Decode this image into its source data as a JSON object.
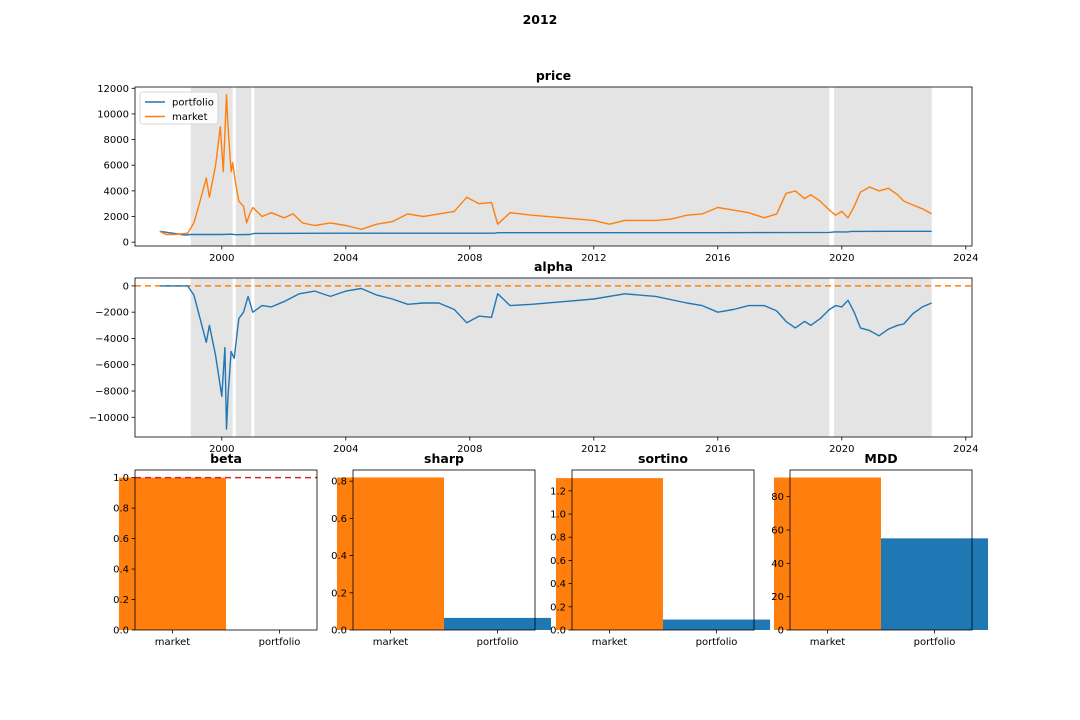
{
  "figure": {
    "suptitle": "2012"
  },
  "colors": {
    "portfolio": "#1f77b4",
    "market": "#ff7f0e",
    "shade": "#e4e4e4",
    "beta_ref": "#d62728",
    "alpha_ref": "#ff7f0e"
  },
  "chart_data": [
    {
      "id": "price",
      "type": "line",
      "title": "price",
      "xlabel": "",
      "ylabel": "",
      "xlim": [
        1997.2,
        2024.2
      ],
      "ylim": [
        -300,
        12100
      ],
      "xticks": [
        2000,
        2004,
        2008,
        2012,
        2016,
        2020,
        2024
      ],
      "xtick_labels": [
        "2000",
        "2004",
        "2008",
        "2012",
        "2016",
        "2020",
        "2024"
      ],
      "yticks": [
        0,
        2000,
        4000,
        6000,
        8000,
        10000,
        12000
      ],
      "ytick_labels": [
        "0",
        "2000",
        "4000",
        "6000",
        "8000",
        "10000",
        "12000"
      ],
      "legend": {
        "position": "upper-left",
        "entries": [
          "portfolio",
          "market"
        ]
      },
      "shaded_periods": [
        [
          1999.0,
          2000.35
        ],
        [
          2000.45,
          2000.95
        ],
        [
          2001.05,
          2019.6
        ],
        [
          2019.75,
          2022.9
        ]
      ],
      "series": [
        {
          "name": "portfolio",
          "x": [
            1998.0,
            1998.8,
            1999.0,
            2000.0,
            2000.3,
            2000.45,
            2000.9,
            2001.05,
            2004.0,
            2008.8,
            2008.9,
            2012.0,
            2016.0,
            2019.6,
            2019.75,
            2020.2,
            2020.3,
            2022.9
          ],
          "y": [
            850,
            560,
            600,
            600,
            620,
            580,
            600,
            680,
            700,
            700,
            740,
            740,
            740,
            760,
            800,
            800,
            840,
            850
          ]
        },
        {
          "name": "market",
          "x": [
            1998.0,
            1998.2,
            1998.5,
            1998.9,
            1999.1,
            1999.3,
            1999.5,
            1999.6,
            1999.8,
            1999.95,
            2000.05,
            2000.15,
            2000.2,
            2000.3,
            2000.35,
            2000.45,
            2000.55,
            2000.7,
            2000.8,
            2000.9,
            2001.0,
            2001.3,
            2001.6,
            2002.0,
            2002.3,
            2002.6,
            2003.0,
            2003.5,
            2004.0,
            2004.5,
            2005.0,
            2005.5,
            2006.0,
            2006.5,
            2007.0,
            2007.5,
            2007.9,
            2008.3,
            2008.7,
            2008.9,
            2009.3,
            2010.0,
            2011.0,
            2012.0,
            2012.5,
            2013.0,
            2014.0,
            2014.5,
            2015.0,
            2015.5,
            2016.0,
            2016.5,
            2017.0,
            2017.5,
            2017.9,
            2018.2,
            2018.5,
            2018.8,
            2019.0,
            2019.3,
            2019.6,
            2019.8,
            2020.0,
            2020.2,
            2020.4,
            2020.6,
            2020.9,
            2021.2,
            2021.5,
            2021.8,
            2022.0,
            2022.3,
            2022.6,
            2022.9
          ],
          "y": [
            850,
            600,
            600,
            700,
            1500,
            3200,
            5000,
            3500,
            6000,
            9000,
            5500,
            11500,
            9000,
            5500,
            6200,
            4500,
            3200,
            2800,
            1500,
            2200,
            2700,
            2000,
            2300,
            1900,
            2200,
            1500,
            1300,
            1500,
            1300,
            1000,
            1400,
            1600,
            2200,
            2000,
            2200,
            2400,
            3500,
            3000,
            3100,
            1400,
            2300,
            2100,
            1900,
            1700,
            1400,
            1700,
            1700,
            1800,
            2100,
            2200,
            2700,
            2500,
            2300,
            1900,
            2200,
            3800,
            4000,
            3400,
            3700,
            3200,
            2500,
            2100,
            2400,
            1900,
            2800,
            3900,
            4300,
            4000,
            4200,
            3700,
            3200,
            2900,
            2600,
            2200
          ]
        }
      ]
    },
    {
      "id": "alpha",
      "type": "line",
      "title": "alpha",
      "xlabel": "",
      "ylabel": "",
      "xlim": [
        1997.2,
        2024.2
      ],
      "ylim": [
        -11500,
        600
      ],
      "xticks": [
        2000,
        2004,
        2008,
        2012,
        2016,
        2020,
        2024
      ],
      "xtick_labels": [
        "2000",
        "2004",
        "2008",
        "2012",
        "2016",
        "2020",
        "2024"
      ],
      "yticks": [
        -10000,
        -8000,
        -6000,
        -4000,
        -2000,
        0
      ],
      "ytick_labels": [
        "−10000",
        "−8000",
        "−6000",
        "−4000",
        "−2000",
        "0"
      ],
      "reference_line": 0,
      "shaded_periods": [
        [
          1999.0,
          2000.35
        ],
        [
          2000.45,
          2000.95
        ],
        [
          2001.05,
          2019.6
        ],
        [
          2019.75,
          2022.9
        ]
      ],
      "series": [
        {
          "name": "alpha",
          "x": [
            1998.0,
            1998.5,
            1998.9,
            1999.1,
            1999.3,
            1999.5,
            1999.6,
            1999.8,
            2000.0,
            2000.1,
            2000.15,
            2000.2,
            2000.3,
            2000.4,
            2000.55,
            2000.7,
            2000.85,
            2001.0,
            2001.3,
            2001.6,
            2002.0,
            2002.5,
            2003.0,
            2003.5,
            2004.0,
            2004.5,
            2005.0,
            2005.5,
            2006.0,
            2006.5,
            2007.0,
            2007.5,
            2007.9,
            2008.3,
            2008.7,
            2008.9,
            2009.3,
            2010.0,
            2011.0,
            2012.0,
            2013.0,
            2014.0,
            2015.0,
            2015.5,
            2016.0,
            2016.5,
            2017.0,
            2017.5,
            2017.9,
            2018.2,
            2018.5,
            2018.8,
            2019.0,
            2019.3,
            2019.6,
            2019.8,
            2020.0,
            2020.2,
            2020.4,
            2020.6,
            2020.9,
            2021.2,
            2021.5,
            2021.8,
            2022.0,
            2022.3,
            2022.6,
            2022.9
          ],
          "y": [
            0,
            0,
            0,
            -700,
            -2500,
            -4300,
            -3000,
            -5300,
            -8400,
            -4700,
            -10900,
            -8400,
            -5000,
            -5500,
            -2500,
            -2000,
            -800,
            -2000,
            -1500,
            -1600,
            -1200,
            -600,
            -400,
            -800,
            -400,
            -200,
            -700,
            -1000,
            -1400,
            -1300,
            -1300,
            -1800,
            -2800,
            -2300,
            -2400,
            -600,
            -1500,
            -1400,
            -1200,
            -1000,
            -600,
            -800,
            -1300,
            -1500,
            -2000,
            -1800,
            -1500,
            -1500,
            -1900,
            -2700,
            -3200,
            -2700,
            -3000,
            -2500,
            -1800,
            -1500,
            -1600,
            -1100,
            -2000,
            -3200,
            -3400,
            -3800,
            -3300,
            -3000,
            -2900,
            -2100,
            -1600,
            -1300
          ]
        }
      ]
    },
    {
      "id": "beta",
      "type": "bar",
      "title": "beta",
      "categories": [
        "market",
        "portfolio"
      ],
      "values": [
        1.0,
        0.0
      ],
      "bar_colors": [
        "#ff7f0e",
        "#1f77b4"
      ],
      "ylim": [
        0,
        1.05
      ],
      "yticks": [
        0,
        0.2,
        0.4,
        0.6,
        0.8,
        1.0
      ],
      "ytick_labels": [
        "0.0",
        "0.2",
        "0.4",
        "0.6",
        "0.8",
        "1.0"
      ],
      "reference_line": 1.0
    },
    {
      "id": "sharp",
      "type": "bar",
      "title": "sharp",
      "categories": [
        "market",
        "portfolio"
      ],
      "values": [
        0.82,
        0.065
      ],
      "bar_colors": [
        "#ff7f0e",
        "#1f77b4"
      ],
      "ylim": [
        0,
        0.86
      ],
      "yticks": [
        0,
        0.2,
        0.4,
        0.6,
        0.8
      ],
      "ytick_labels": [
        "0.0",
        "0.2",
        "0.4",
        "0.6",
        "0.8"
      ]
    },
    {
      "id": "sortino",
      "type": "bar",
      "title": "sortino",
      "categories": [
        "market",
        "portfolio"
      ],
      "values": [
        1.31,
        0.09
      ],
      "bar_colors": [
        "#ff7f0e",
        "#1f77b4"
      ],
      "ylim": [
        0,
        1.38
      ],
      "yticks": [
        0,
        0.2,
        0.4,
        0.6,
        0.8,
        1.0,
        1.2
      ],
      "ytick_labels": [
        "0.0",
        "0.2",
        "0.4",
        "0.6",
        "0.8",
        "1.0",
        "1.2"
      ]
    },
    {
      "id": "MDD",
      "type": "bar",
      "title": "MDD",
      "categories": [
        "market",
        "portfolio"
      ],
      "values": [
        91.5,
        55
      ],
      "bar_colors": [
        "#ff7f0e",
        "#1f77b4"
      ],
      "ylim": [
        0,
        96
      ],
      "yticks": [
        0,
        20,
        40,
        60,
        80
      ],
      "ytick_labels": [
        "0",
        "20",
        "40",
        "60",
        "80"
      ]
    }
  ]
}
